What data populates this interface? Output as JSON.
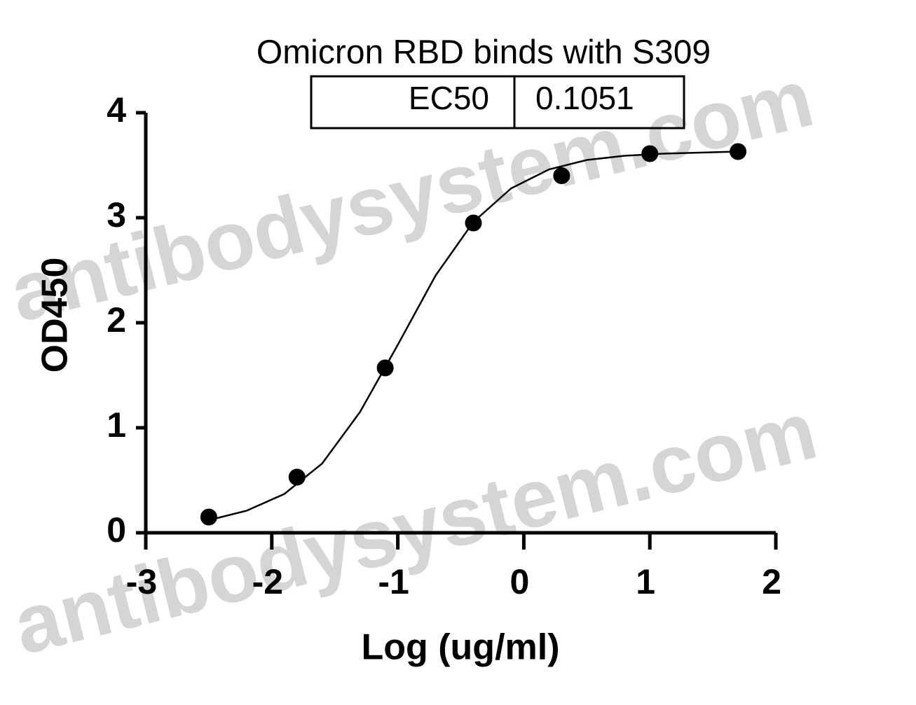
{
  "chart_data": {
    "type": "scatter",
    "title": "Omicron RBD binds with S309",
    "xlabel": "Log (ug/ml)",
    "ylabel": "OD450",
    "table": {
      "label": "EC50",
      "value": "0.1051"
    },
    "watermark": "antibodysystem.com",
    "x": [
      -2.5,
      -1.8,
      -1.1,
      -0.4,
      0.3,
      1.0,
      1.7
    ],
    "values": [
      0.15,
      0.53,
      1.57,
      2.95,
      3.4,
      3.61,
      3.63
    ],
    "curve": {
      "x": [
        -2.5,
        -2.2,
        -1.9,
        -1.6,
        -1.3,
        -1.0,
        -0.7,
        -0.4,
        -0.1,
        0.2,
        0.5,
        0.8,
        1.1,
        1.4,
        1.7
      ],
      "values": [
        0.12,
        0.21,
        0.37,
        0.66,
        1.15,
        1.79,
        2.45,
        2.96,
        3.28,
        3.46,
        3.55,
        3.59,
        3.61,
        3.62,
        3.63
      ]
    },
    "color": "#000000",
    "xlim": [
      -3,
      2
    ],
    "xticks": [
      -3,
      -2,
      -1,
      0,
      1,
      2
    ],
    "ylim": [
      0,
      4
    ],
    "yticks": [
      0,
      1,
      2,
      3,
      4
    ]
  }
}
